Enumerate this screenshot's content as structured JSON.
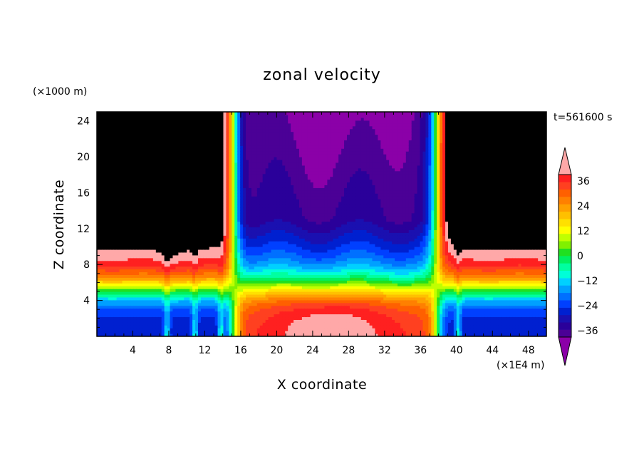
{
  "chart_data": {
    "type": "heatmap",
    "title": "zonal velocity",
    "xlabel": "X coordinate",
    "ylabel": "Z coordinate",
    "x_units": "(×1E4 m)",
    "y_units": "(×1000 m)",
    "time_label": "t=561600 s",
    "xlim": [
      0,
      50
    ],
    "ylim": [
      0,
      25
    ],
    "x_ticks": [
      4,
      8,
      12,
      16,
      20,
      24,
      28,
      32,
      36,
      40,
      44,
      48
    ],
    "y_ticks": [
      4,
      8,
      12,
      16,
      20,
      24
    ],
    "colorbar": {
      "levels": [
        -42,
        -39,
        -36,
        -33,
        -30,
        -27,
        -24,
        -21,
        -18,
        -15,
        -12,
        -9,
        -6,
        -3,
        0,
        3,
        6,
        9,
        12,
        15,
        18,
        21,
        24,
        27,
        30,
        33,
        36,
        39,
        42
      ],
      "colors": [
        "#8b00a8",
        "#4b0096",
        "#2a009a",
        "#1a10b0",
        "#0020d0",
        "#0040ff",
        "#0070ff",
        "#00a0ff",
        "#00d0ff",
        "#00ffd8",
        "#00ffa0",
        "#00f060",
        "#20e020",
        "#80f000",
        "#c0ff00",
        "#ffff00",
        "#ffe000",
        "#ffc000",
        "#ffa000",
        "#ff8000",
        "#ff6000",
        "#ff4020",
        "#ff2020",
        "#ffa8a8"
      ],
      "tick_labels": [
        "36",
        "24",
        "12",
        "0",
        "−12",
        "−24",
        "−36"
      ],
      "tick_values": [
        36,
        24,
        12,
        0,
        -12,
        -24,
        -36
      ],
      "extend": "both"
    },
    "field_description_values": {
      "x_jet_positive": [
        0,
        14.5
      ],
      "x_jet_negative": [
        16,
        36.5
      ],
      "x_jet_positive_2": [
        38.5,
        50
      ],
      "surface_layer_top": 5,
      "max_positive": 38,
      "max_negative": -42
    }
  }
}
